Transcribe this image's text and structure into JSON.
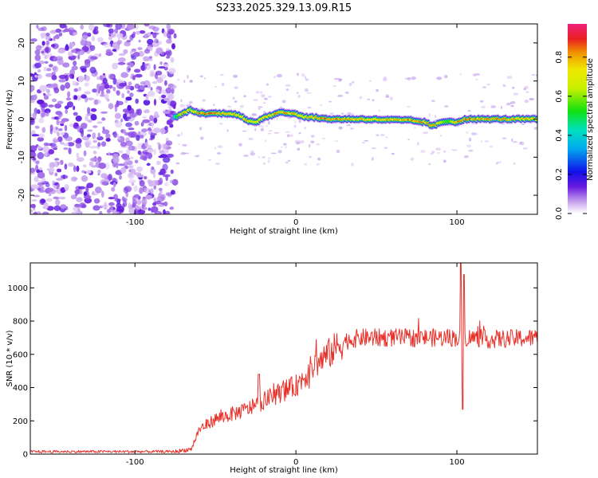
{
  "title": "S233.2025.329.13.09.R15",
  "chart_data": [
    {
      "type": "heatmap",
      "xlabel": "Height of straight line (km)",
      "ylabel": "Frequency (Hz)",
      "xlim": [
        -165,
        150
      ],
      "ylim": [
        -25,
        25
      ],
      "xticks": [
        -100,
        0,
        100
      ],
      "yticks": [
        -20,
        -10,
        0,
        10,
        20
      ],
      "colorbar": {
        "label": "Normalized spectral amplitude",
        "range": [
          0,
          0.97
        ],
        "ticks": [
          0.0,
          0.2,
          0.4,
          0.6,
          0.8
        ]
      },
      "noise_region_end_km": -75,
      "ridge": {
        "x": [
          -75,
          -70,
          -65,
          -60,
          -55,
          -50,
          -45,
          -40,
          -35,
          -30,
          -25,
          -20,
          -15,
          -10,
          -5,
          0,
          5,
          10,
          20,
          40,
          60,
          70,
          80,
          85,
          90,
          95,
          100,
          105,
          110,
          120,
          130,
          140,
          148
        ],
        "freq": [
          0.5,
          1.5,
          2.5,
          1.5,
          1.5,
          1.5,
          1.5,
          1.5,
          1.0,
          -0.5,
          -1.0,
          0.5,
          1.0,
          2.0,
          1.5,
          1.5,
          0.5,
          0.5,
          0.0,
          0.0,
          -0.2,
          -0.3,
          -0.8,
          -1.8,
          -1.0,
          -0.5,
          -0.8,
          0.0,
          0.0,
          0.0,
          0.0,
          0.0,
          0.0
        ],
        "amp": [
          0.5,
          0.85,
          0.7,
          0.9,
          0.95,
          0.92,
          0.9,
          0.85,
          0.8,
          0.85,
          0.8,
          0.85,
          0.85,
          0.9,
          0.88,
          0.85,
          0.8,
          0.85,
          0.95,
          0.85,
          0.85,
          0.9,
          0.9,
          0.95,
          0.7,
          0.6,
          0.9,
          0.95,
          0.9,
          0.9,
          0.9,
          0.85,
          0.85
        ]
      }
    },
    {
      "type": "line",
      "xlabel": "Height of straight line (km)",
      "ylabel": "SNR (10 * v/v)",
      "xlim": [
        -165,
        150
      ],
      "ylim": [
        0,
        1150
      ],
      "xticks": [
        -100,
        0,
        100
      ],
      "yticks": [
        0,
        200,
        400,
        600,
        800,
        1000
      ],
      "color": "#e8312a",
      "trend": {
        "x": [
          -165,
          -75,
          -65,
          -60,
          -50,
          -40,
          -30,
          -20,
          -10,
          0,
          10,
          20,
          30,
          40,
          60,
          80,
          100,
          110,
          120,
          150
        ],
        "snr": [
          15,
          15,
          30,
          150,
          210,
          240,
          270,
          320,
          370,
          410,
          520,
          600,
          680,
          700,
          700,
          700,
          700,
          700,
          690,
          700
        ]
      },
      "features": [
        {
          "x": 102.5,
          "snr": 1150
        },
        {
          "x": 104.5,
          "snr": 1080
        },
        {
          "x": 103.5,
          "snr": 270
        },
        {
          "x": -23,
          "snr": 480
        }
      ]
    }
  ]
}
